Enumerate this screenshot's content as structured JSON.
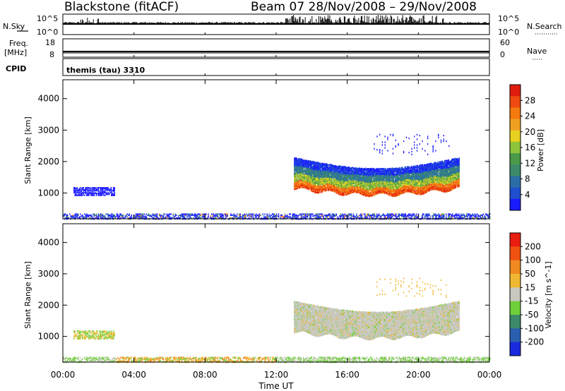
{
  "header": {
    "station": "Blackstone (fitACF)",
    "beam_range": "Beam 07  28/Nov/2008 – 29/Nov/2008"
  },
  "top_panels": {
    "nsky_label": "N.Sky",
    "nsky_ticks": [
      "10^5",
      "10^0"
    ],
    "nsearch_label": "N.Search",
    "nsearch_ticks": [
      "10^5",
      "10^0"
    ],
    "freq_label_1": "Freq.",
    "freq_label_2": "[MHz]",
    "freq_ticks": [
      "18",
      "8"
    ],
    "nave_label": "Nave",
    "nave_ticks": [
      "60",
      "0"
    ],
    "cpid_label": "CPID",
    "cpid_value": "themis (tau) 3310"
  },
  "chart_data": [
    {
      "type": "heatmap",
      "panel": "power",
      "xlabel": "",
      "ylabel": "Slant Range [km]",
      "xlim": [
        "00:00",
        "24:00"
      ],
      "ylim": [
        180,
        4600
      ],
      "y_ticks": [
        1000,
        2000,
        3000,
        4000
      ],
      "colorbar_label": "Power [dB]",
      "colorbar_ticks": [
        4,
        8,
        12,
        16,
        20,
        24,
        28
      ],
      "colorbar_colors": [
        "#1a1aff",
        "#1f4fcf",
        "#2a6ea8",
        "#3c8a6a",
        "#4a9a4a",
        "#8cc43a",
        "#e8d020",
        "#f0a020",
        "#f57a10",
        "#f04a10",
        "#e01e10"
      ],
      "regions": [
        {
          "t_start": 0.0,
          "t_end": 24.0,
          "r_min": 200,
          "r_max": 380,
          "value": "low",
          "note": "near-range ground scatter band"
        },
        {
          "t_start": 0.6,
          "t_end": 2.9,
          "r_min": 950,
          "r_max": 1200,
          "value": 6
        },
        {
          "t_start": 13.0,
          "t_end": 22.3,
          "r_min": 850,
          "r_max": 2200,
          "value": "mixed",
          "note": "main echo band, strongest near lower edge"
        }
      ]
    },
    {
      "type": "heatmap",
      "panel": "velocity",
      "xlabel": "Time UT",
      "ylabel": "Slant Range [km]",
      "xlim": [
        "00:00",
        "24:00"
      ],
      "x_ticks": [
        "00:00",
        "04:00",
        "08:00",
        "12:00",
        "16:00",
        "20:00",
        "00:00"
      ],
      "ylim": [
        180,
        4600
      ],
      "y_ticks": [
        1000,
        2000,
        3000,
        4000
      ],
      "colorbar_label": "Velocity [m s^-1]",
      "colorbar_ticks": [
        200,
        100,
        50,
        15,
        -15,
        -50,
        -100,
        -200
      ],
      "colorbar_colors": [
        "#1a2adf",
        "#2a5fb0",
        "#3c8a6a",
        "#6fcf3a",
        "#c8c8c0",
        "#f0b830",
        "#f08a20",
        "#f05010",
        "#e81e10"
      ]
    }
  ]
}
